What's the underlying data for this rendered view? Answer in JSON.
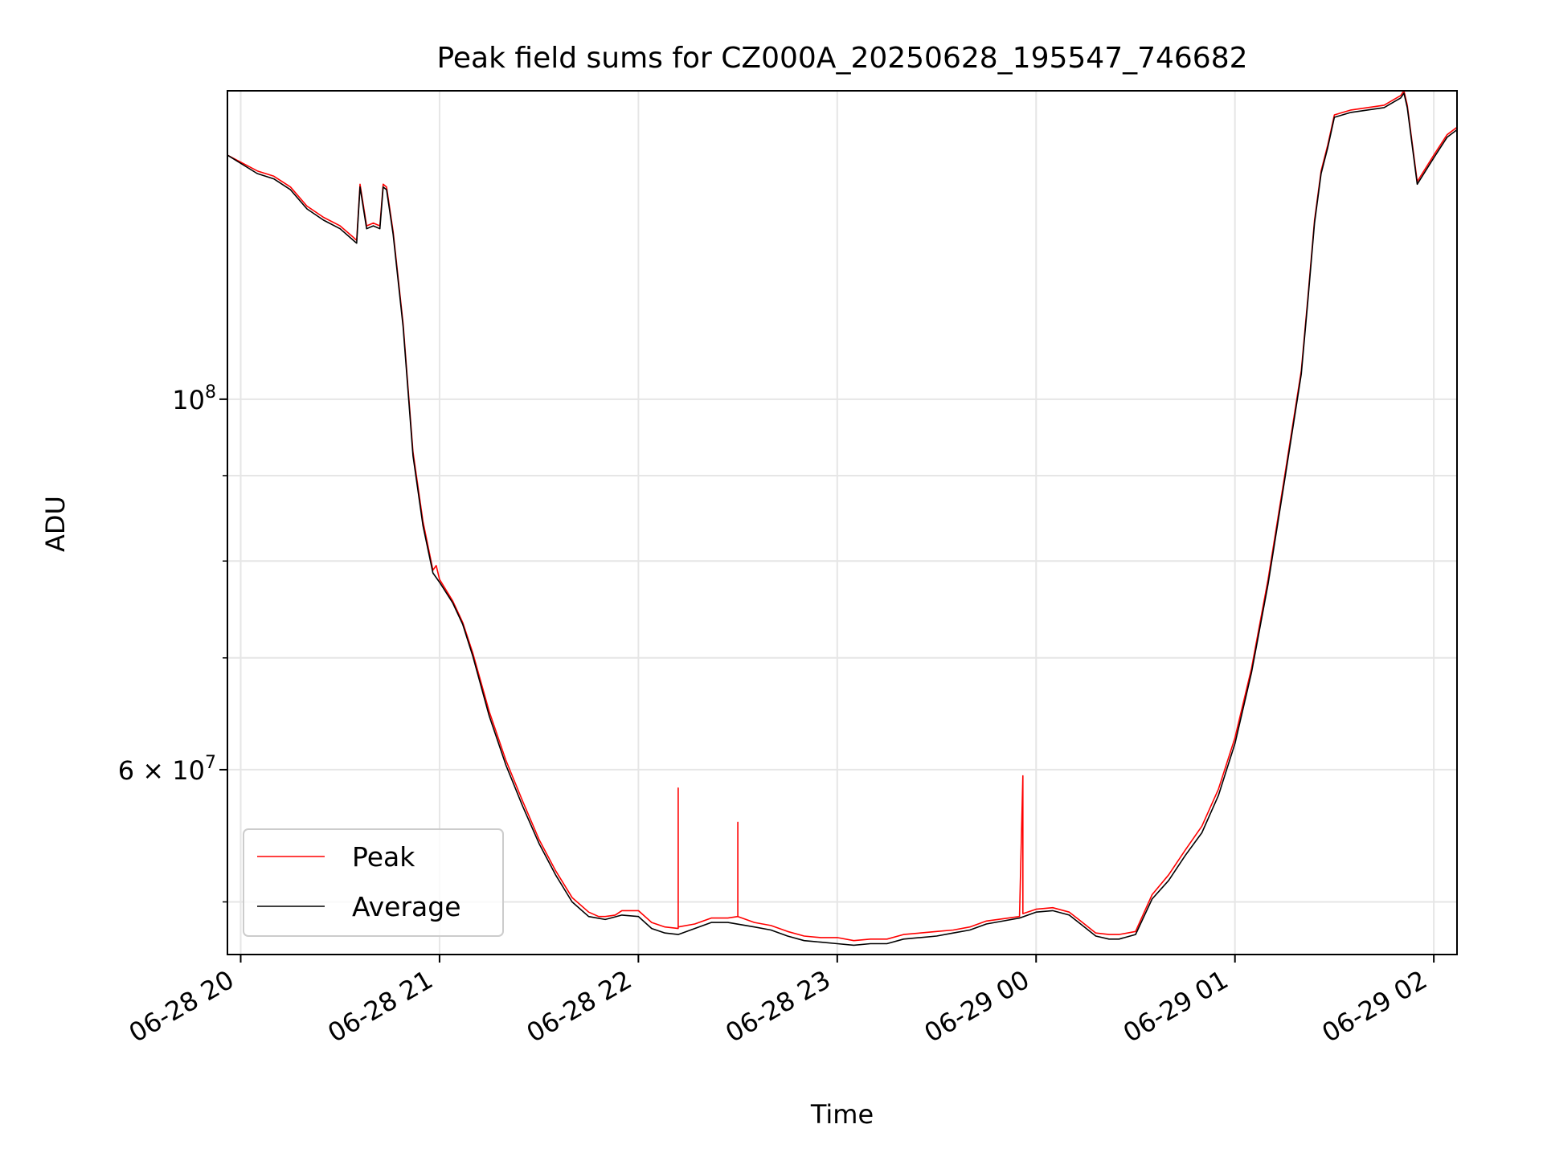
{
  "chart_data": {
    "type": "line",
    "title": "Peak field sums for CZ000A_20250628_195547_746682",
    "xlabel": "Time",
    "ylabel": "ADU",
    "y_scale": "log",
    "ylim": [
      46500000,
      153000000
    ],
    "xlim": [
      "2025-06-28T19:56",
      "2025-06-29T02:07"
    ],
    "grid": true,
    "legend_position": "lower-left",
    "x_ticks": [
      {
        "value": "2025-06-28T20:00",
        "label": "06-28 20"
      },
      {
        "value": "2025-06-28T21:00",
        "label": "06-28 21"
      },
      {
        "value": "2025-06-28T22:00",
        "label": "06-28 22"
      },
      {
        "value": "2025-06-28T23:00",
        "label": "06-28 23"
      },
      {
        "value": "2025-06-29T00:00",
        "label": "06-29 00"
      },
      {
        "value": "2025-06-29T01:00",
        "label": "06-29 01"
      },
      {
        "value": "2025-06-29T02:00",
        "label": "06-29 02"
      }
    ],
    "y_ticks": [
      {
        "value": 100000000,
        "label": "10",
        "exponent": "8"
      },
      {
        "value": 60000000,
        "label": "6 × 10",
        "exponent": "7"
      }
    ],
    "y_minor_ticks": [
      50000000,
      70000000,
      80000000,
      90000000
    ],
    "series": [
      {
        "name": "Peak",
        "color": "#ff0000",
        "x": [
          "2025-06-28T19:56",
          "2025-06-28T20:05",
          "2025-06-28T20:10",
          "2025-06-28T20:15",
          "2025-06-28T20:20",
          "2025-06-28T20:25",
          "2025-06-28T20:30",
          "2025-06-28T20:34",
          "2025-06-28T20:35",
          "2025-06-28T20:36",
          "2025-06-28T20:38",
          "2025-06-28T20:40",
          "2025-06-28T20:42",
          "2025-06-28T20:43",
          "2025-06-28T20:44",
          "2025-06-28T20:46",
          "2025-06-28T20:49",
          "2025-06-28T20:52",
          "2025-06-28T20:55",
          "2025-06-28T20:58",
          "2025-06-28T20:59",
          "2025-06-28T21:00",
          "2025-06-28T21:04",
          "2025-06-28T21:07",
          "2025-06-28T21:10",
          "2025-06-28T21:15",
          "2025-06-28T21:20",
          "2025-06-28T21:25",
          "2025-06-28T21:30",
          "2025-06-28T21:35",
          "2025-06-28T21:40",
          "2025-06-28T21:45",
          "2025-06-28T21:48",
          "2025-06-28T21:50",
          "2025-06-28T21:53",
          "2025-06-28T21:55",
          "2025-06-28T22:00",
          "2025-06-28T22:04",
          "2025-06-28T22:08",
          "2025-06-28T22:12",
          "2025-06-28T22:12",
          "2025-06-28T22:12",
          "2025-06-28T22:17",
          "2025-06-28T22:22",
          "2025-06-28T22:27",
          "2025-06-28T22:30",
          "2025-06-28T22:30",
          "2025-06-28T22:30",
          "2025-06-28T22:35",
          "2025-06-28T22:40",
          "2025-06-28T22:45",
          "2025-06-28T22:50",
          "2025-06-28T22:55",
          "2025-06-28T23:00",
          "2025-06-28T23:05",
          "2025-06-28T23:10",
          "2025-06-28T23:15",
          "2025-06-28T23:20",
          "2025-06-28T23:25",
          "2025-06-28T23:30",
          "2025-06-28T23:35",
          "2025-06-28T23:40",
          "2025-06-28T23:45",
          "2025-06-28T23:55",
          "2025-06-28T23:56",
          "2025-06-28T23:56",
          "2025-06-29T00:00",
          "2025-06-29T00:05",
          "2025-06-29T00:10",
          "2025-06-29T00:14",
          "2025-06-29T00:18",
          "2025-06-29T00:22",
          "2025-06-29T00:25",
          "2025-06-29T00:30",
          "2025-06-29T00:35",
          "2025-06-29T00:40",
          "2025-06-29T00:45",
          "2025-06-29T00:50",
          "2025-06-29T00:55",
          "2025-06-29T01:00",
          "2025-06-29T01:05",
          "2025-06-29T01:10",
          "2025-06-29T01:15",
          "2025-06-29T01:20",
          "2025-06-29T01:22",
          "2025-06-29T01:24",
          "2025-06-29T01:26",
          "2025-06-29T01:28",
          "2025-06-29T01:30",
          "2025-06-29T01:35",
          "2025-06-29T01:40",
          "2025-06-29T01:45",
          "2025-06-29T01:50",
          "2025-06-29T01:51",
          "2025-06-29T01:52",
          "2025-06-29T01:55",
          "2025-06-29T02:00",
          "2025-06-29T02:04",
          "2025-06-29T02:07"
        ],
        "values": [
          140000000,
          137000000,
          136000000,
          134000000,
          130500000,
          128500000,
          127000000,
          125000000,
          124500000,
          134500000,
          127000000,
          127500000,
          127000000,
          134500000,
          134000000,
          126000000,
          111000000,
          93000000,
          84500000,
          79000000,
          79500000,
          78000000,
          75700000,
          73500000,
          70500000,
          65000000,
          60800000,
          57500000,
          54500000,
          52200000,
          50300000,
          49300000,
          49000000,
          49000000,
          49100000,
          49400000,
          49400000,
          48600000,
          48300000,
          48200000,
          58500000,
          48300000,
          48500000,
          48900000,
          48900000,
          49000000,
          55800000,
          49000000,
          48600000,
          48400000,
          48000000,
          47700000,
          47600000,
          47600000,
          47400000,
          47500000,
          47500000,
          47800000,
          47900000,
          48000000,
          48100000,
          48300000,
          48700000,
          49000000,
          59500000,
          49200000,
          49500000,
          49600000,
          49300000,
          48600000,
          47900000,
          47800000,
          47800000,
          48000000,
          50500000,
          51900000,
          53700000,
          55500000,
          58400000,
          62700000,
          69000000,
          78000000,
          90000000,
          104000000,
          115000000,
          128000000,
          137000000,
          142000000,
          148000000,
          149000000,
          149500000,
          150000000,
          152000000,
          153000000,
          150000000,
          135000000,
          140000000,
          144000000,
          145500000
        ]
      },
      {
        "name": "Average",
        "color": "#000000",
        "x": [
          "2025-06-28T19:56",
          "2025-06-28T20:05",
          "2025-06-28T20:10",
          "2025-06-28T20:15",
          "2025-06-28T20:20",
          "2025-06-28T20:25",
          "2025-06-28T20:30",
          "2025-06-28T20:34",
          "2025-06-28T20:35",
          "2025-06-28T20:36",
          "2025-06-28T20:38",
          "2025-06-28T20:40",
          "2025-06-28T20:42",
          "2025-06-28T20:43",
          "2025-06-28T20:44",
          "2025-06-28T20:46",
          "2025-06-28T20:49",
          "2025-06-28T20:52",
          "2025-06-28T20:55",
          "2025-06-28T20:58",
          "2025-06-28T21:00",
          "2025-06-28T21:04",
          "2025-06-28T21:07",
          "2025-06-28T21:10",
          "2025-06-28T21:15",
          "2025-06-28T21:20",
          "2025-06-28T21:25",
          "2025-06-28T21:30",
          "2025-06-28T21:35",
          "2025-06-28T21:40",
          "2025-06-28T21:45",
          "2025-06-28T21:50",
          "2025-06-28T21:55",
          "2025-06-28T22:00",
          "2025-06-28T22:04",
          "2025-06-28T22:08",
          "2025-06-28T22:12",
          "2025-06-28T22:17",
          "2025-06-28T22:22",
          "2025-06-28T22:27",
          "2025-06-28T22:35",
          "2025-06-28T22:40",
          "2025-06-28T22:45",
          "2025-06-28T22:50",
          "2025-06-28T22:55",
          "2025-06-28T23:00",
          "2025-06-28T23:05",
          "2025-06-28T23:10",
          "2025-06-28T23:15",
          "2025-06-28T23:20",
          "2025-06-28T23:25",
          "2025-06-28T23:30",
          "2025-06-28T23:35",
          "2025-06-28T23:40",
          "2025-06-28T23:45",
          "2025-06-28T23:55",
          "2025-06-29T00:00",
          "2025-06-29T00:05",
          "2025-06-29T00:10",
          "2025-06-29T00:14",
          "2025-06-29T00:18",
          "2025-06-29T00:22",
          "2025-06-29T00:25",
          "2025-06-29T00:30",
          "2025-06-29T00:35",
          "2025-06-29T00:40",
          "2025-06-29T00:45",
          "2025-06-29T00:50",
          "2025-06-29T00:55",
          "2025-06-29T01:00",
          "2025-06-29T01:05",
          "2025-06-29T01:10",
          "2025-06-29T01:15",
          "2025-06-29T01:20",
          "2025-06-29T01:22",
          "2025-06-29T01:24",
          "2025-06-29T01:26",
          "2025-06-29T01:28",
          "2025-06-29T01:30",
          "2025-06-29T01:35",
          "2025-06-29T01:40",
          "2025-06-29T01:45",
          "2025-06-29T01:50",
          "2025-06-29T01:51",
          "2025-06-29T01:52",
          "2025-06-29T01:55",
          "2025-06-29T02:00",
          "2025-06-29T02:04",
          "2025-06-29T02:07"
        ],
        "values": [
          140000000,
          136500000,
          135500000,
          133500000,
          130000000,
          128000000,
          126500000,
          124500000,
          124000000,
          134000000,
          126500000,
          127000000,
          126500000,
          134000000,
          133500000,
          125500000,
          110500000,
          92500000,
          84000000,
          78700000,
          77700000,
          75500000,
          73300000,
          70200000,
          64600000,
          60400000,
          57100000,
          54200000,
          51900000,
          50000000,
          49000000,
          48800000,
          49100000,
          49000000,
          48200000,
          47900000,
          47800000,
          48200000,
          48600000,
          48600000,
          48300000,
          48100000,
          47700000,
          47400000,
          47300000,
          47200000,
          47100000,
          47200000,
          47200000,
          47500000,
          47600000,
          47700000,
          47900000,
          48100000,
          48500000,
          48900000,
          49300000,
          49400000,
          49100000,
          48400000,
          47700000,
          47500000,
          47500000,
          47800000,
          50200000,
          51500000,
          53300000,
          55000000,
          57900000,
          62200000,
          68600000,
          77500000,
          89500000,
          103500000,
          114500000,
          127500000,
          136500000,
          141500000,
          147500000,
          148500000,
          149000000,
          149500000,
          151500000,
          152500000,
          149500000,
          134500000,
          139500000,
          143500000,
          145000000
        ]
      }
    ]
  }
}
